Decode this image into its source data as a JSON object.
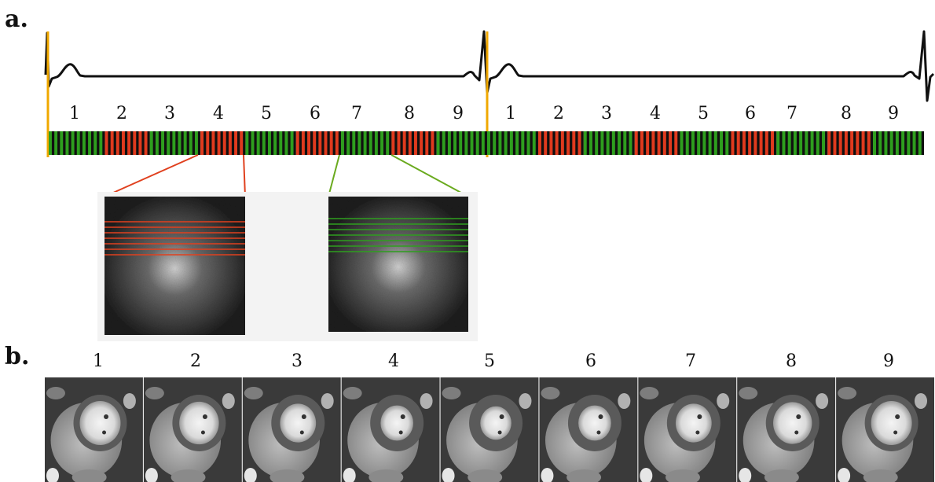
{
  "panel_a": {
    "label": "a.",
    "phase_labels_cycle1": [
      "1",
      "2",
      "3",
      "4",
      "5",
      "6",
      "7",
      "8",
      "9"
    ],
    "phase_labels_cycle2": [
      "1",
      "2",
      "3",
      "4",
      "5",
      "6",
      "7",
      "8",
      "9"
    ],
    "segments_cycle1": [
      {
        "color": "green",
        "stripes": 10
      },
      {
        "color": "red",
        "stripes": 8
      },
      {
        "color": "green",
        "stripes": 9
      },
      {
        "color": "red",
        "stripes": 8
      },
      {
        "color": "green",
        "stripes": 9
      },
      {
        "color": "red",
        "stripes": 8
      },
      {
        "color": "green",
        "stripes": 9
      },
      {
        "color": "red",
        "stripes": 8
      },
      {
        "color": "green",
        "stripes": 9
      }
    ],
    "segments_cycle2": [
      {
        "color": "green",
        "stripes": 9
      },
      {
        "color": "red",
        "stripes": 8
      },
      {
        "color": "green",
        "stripes": 9
      },
      {
        "color": "red",
        "stripes": 8
      },
      {
        "color": "green",
        "stripes": 9
      },
      {
        "color": "red",
        "stripes": 8
      },
      {
        "color": "green",
        "stripes": 9
      },
      {
        "color": "red",
        "stripes": 8
      },
      {
        "color": "green",
        "stripes": 9
      }
    ],
    "kspace_insets": [
      {
        "name": "red-kspace-inset",
        "line_color": "#e0401e",
        "lines": 7
      },
      {
        "name": "green-kspace-inset",
        "line_color": "#2e9e1e",
        "lines": 7
      }
    ]
  },
  "panel_b": {
    "label": "b.",
    "frame_labels": [
      "1",
      "2",
      "3",
      "4",
      "5",
      "6",
      "7",
      "8",
      "9"
    ]
  },
  "colors": {
    "ecg_trace": "#111111",
    "r_wave_marker": "#f0a800",
    "red_segment": "#e03a1e",
    "green_segment": "#2e9e1e",
    "stripe_dark": "#101010"
  }
}
